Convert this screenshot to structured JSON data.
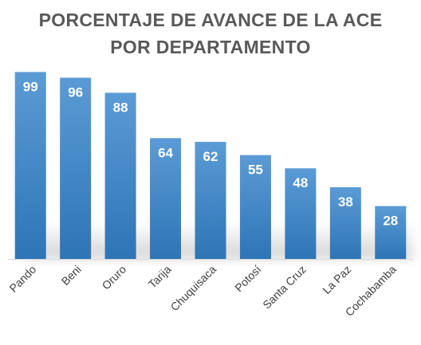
{
  "chart_data": {
    "type": "bar",
    "title_lines": [
      "PORCENTAJE DE AVANCE DE LA ACE",
      "POR DEPARTAMENTO"
    ],
    "categories": [
      "Pando",
      "Beni",
      "Oruro",
      "Tarija",
      "Chuquisaca",
      "Potosí",
      "Santa Cruz",
      "La Paz",
      "Cochabamba"
    ],
    "values": [
      99,
      96,
      88,
      64,
      62,
      55,
      48,
      38,
      28
    ],
    "xlabel": "",
    "ylabel": "",
    "ylim": [
      0,
      100
    ],
    "grid": false,
    "legend": "none",
    "data_labels": true,
    "colors": {
      "bar_top": "#5b9bd5",
      "bar_bottom": "#2e75b6",
      "label": "#ffffff",
      "axis": "#d9d9d9",
      "tick_label": "#404040",
      "title": "#595959"
    }
  }
}
